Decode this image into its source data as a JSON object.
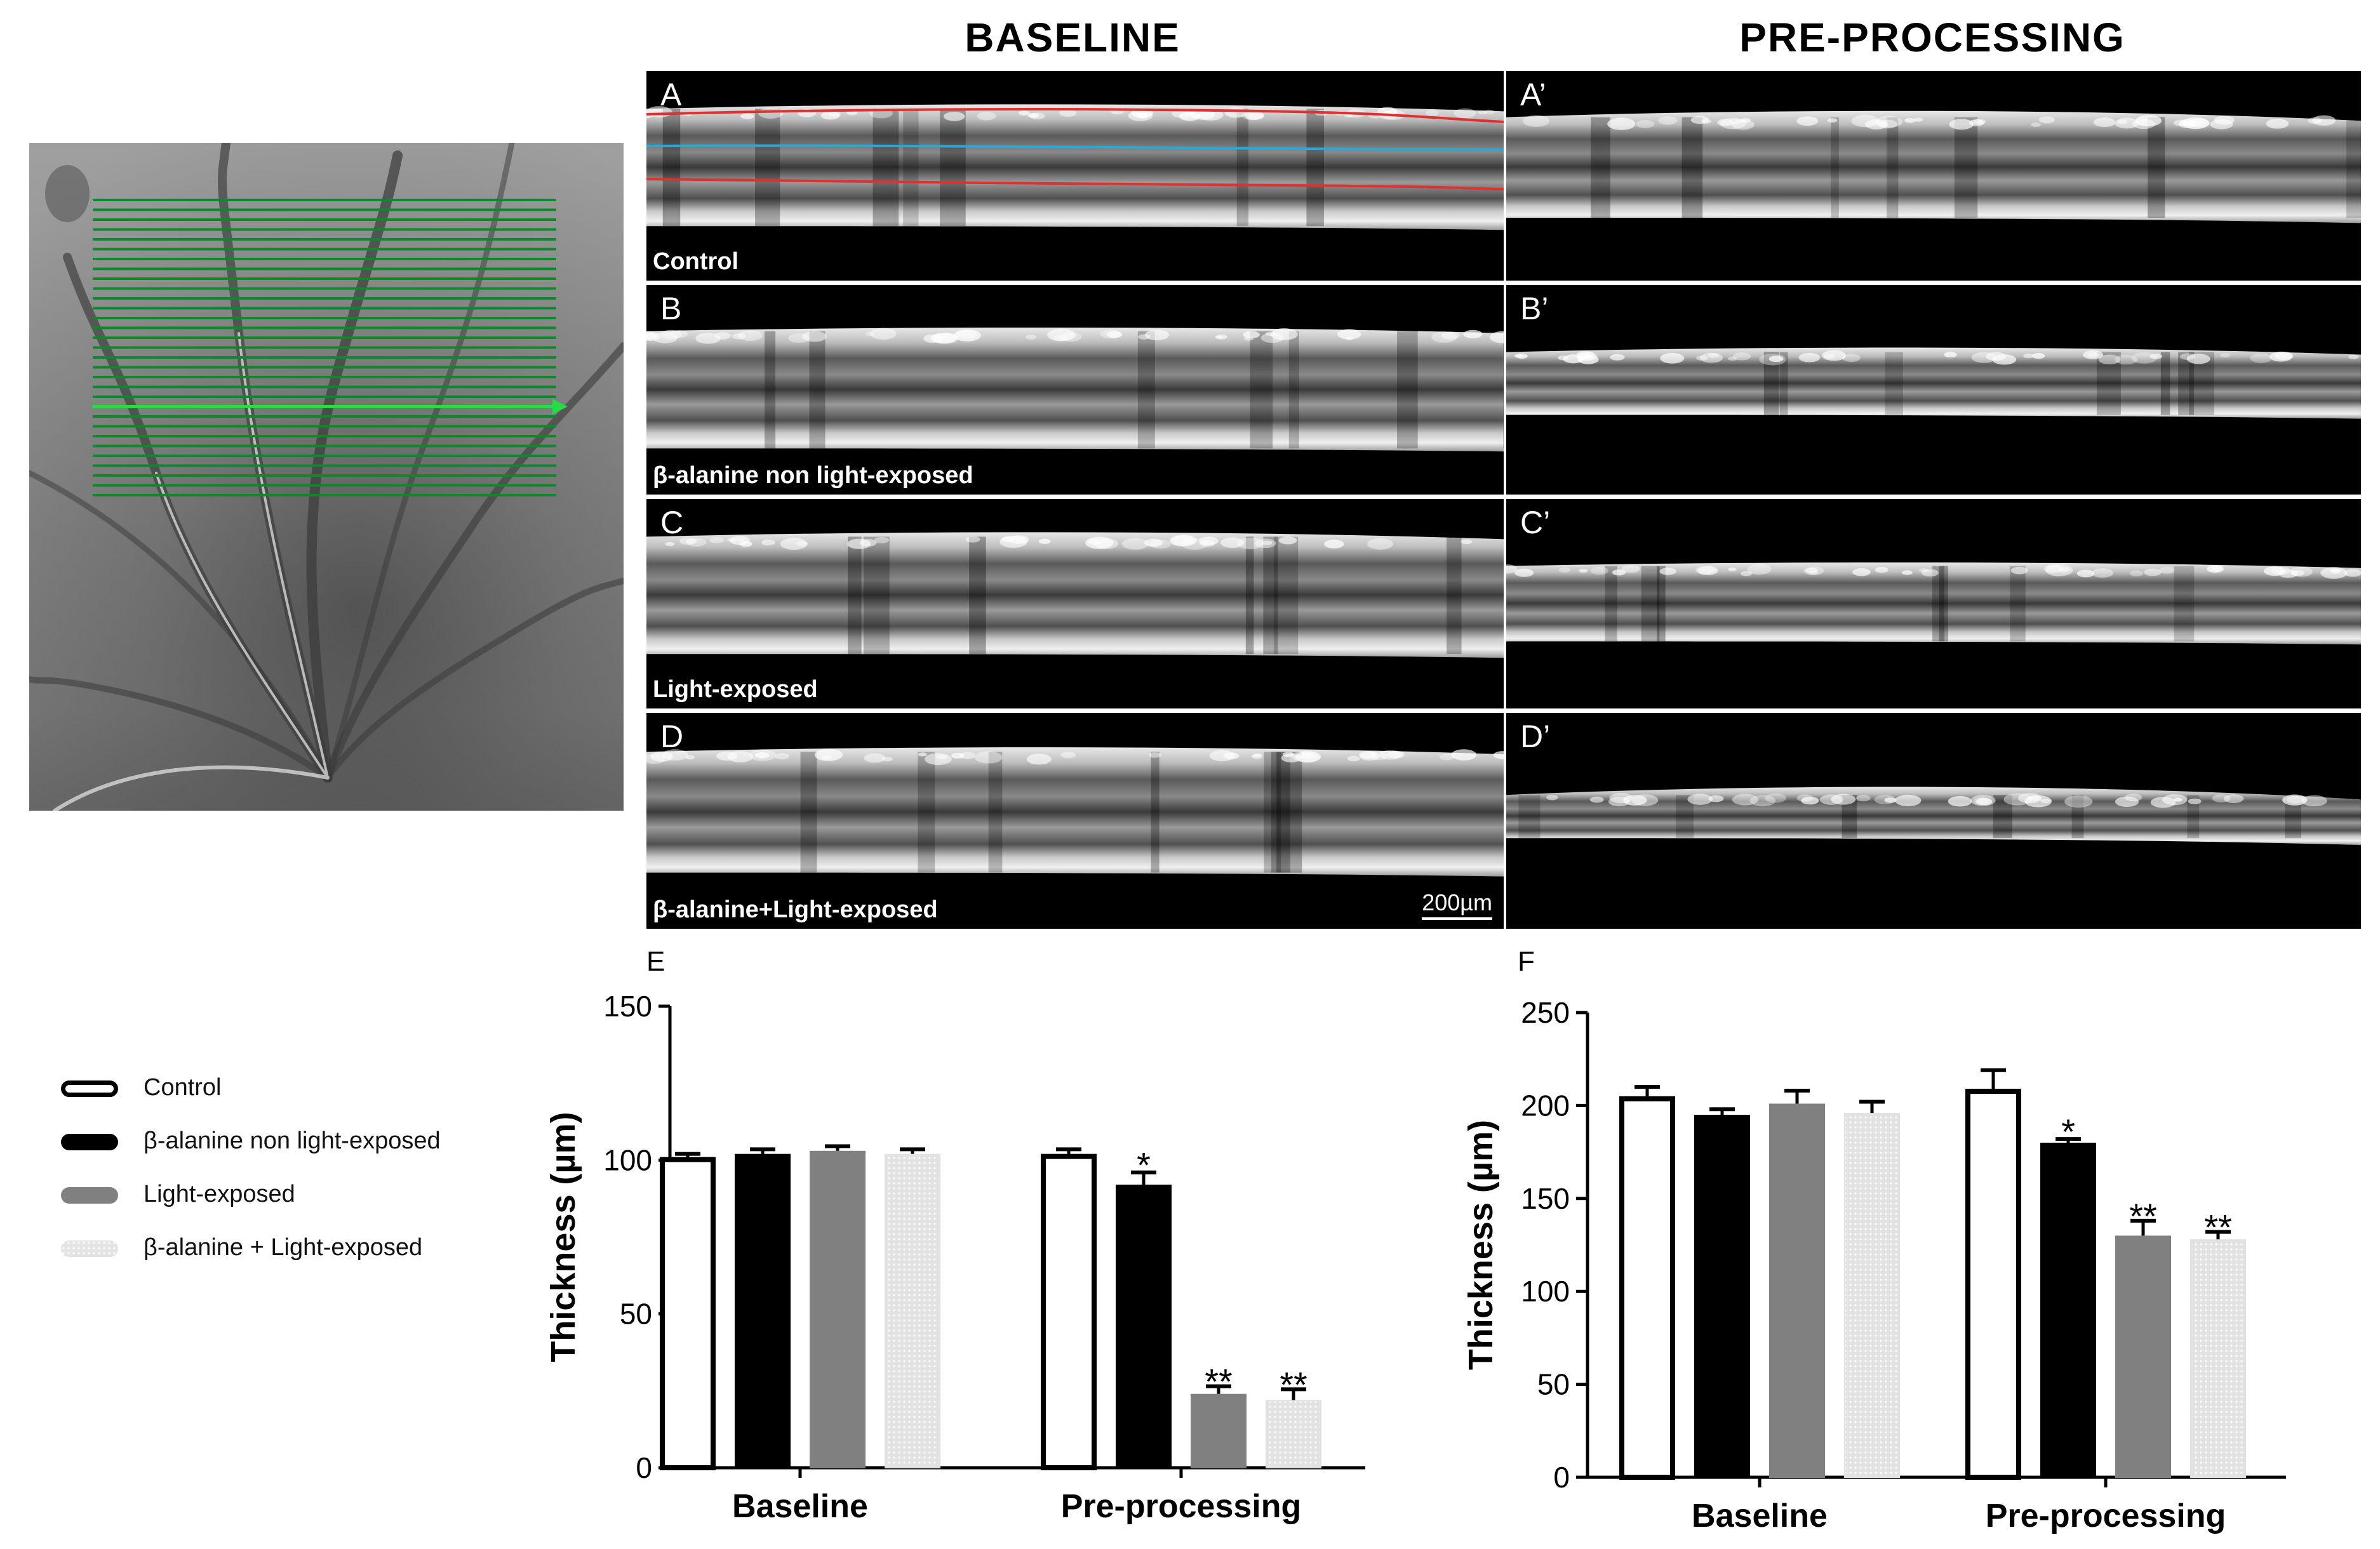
{
  "headers": {
    "baseline": "BASELINE",
    "preprocessing": "PRE-PROCESSING"
  },
  "panels": {
    "A": {
      "letter": "A",
      "caption": "Control"
    },
    "B": {
      "letter": "B",
      "caption": "β-alanine non light-exposed"
    },
    "C": {
      "letter": "C",
      "caption": "Light-exposed"
    },
    "D": {
      "letter": "D",
      "caption": "β-alanine+Light-exposed",
      "scalebar": "200µm"
    },
    "A2": {
      "letter": "A’"
    },
    "B2": {
      "letter": "B’"
    },
    "C2": {
      "letter": "C’"
    },
    "D2": {
      "letter": "D’"
    }
  },
  "legend": [
    {
      "label": "Control",
      "color": "#ffffff",
      "border": "#000000"
    },
    {
      "label": "β-alanine non light-exposed",
      "color": "#000000",
      "border": "#000000"
    },
    {
      "label": "Light-exposed",
      "color": "#808080",
      "border": "#808080"
    },
    {
      "label": "β-alanine + Light-exposed",
      "color": "#e6e6e6",
      "border": "#e6e6e6"
    }
  ],
  "colors": {
    "control": "#ffffff",
    "beta_non_light": "#000000",
    "light": "#808080",
    "beta_light": "#e2e2e2",
    "scan_lines": "#0a8a2a",
    "scan_active": "#22dd44"
  },
  "chart_data": [
    {
      "letter": "E",
      "type": "bar",
      "ylabel": "Thickness (µm)",
      "xlabel": "",
      "ylim": [
        0,
        150
      ],
      "yticks": [
        0,
        50,
        100,
        150
      ],
      "categories": [
        "Baseline",
        "Pre-processing"
      ],
      "series": [
        {
          "name": "Control",
          "values": [
            101,
            102
          ],
          "errors": [
            1,
            1.5
          ],
          "annotations": [
            "",
            ""
          ]
        },
        {
          "name": "β-alanine non light-exposed",
          "values": [
            102,
            92
          ],
          "errors": [
            1.5,
            4
          ],
          "annotations": [
            "",
            "*"
          ]
        },
        {
          "name": "Light-exposed",
          "values": [
            103,
            24
          ],
          "errors": [
            1.5,
            2.5
          ],
          "annotations": [
            "",
            "**"
          ]
        },
        {
          "name": "β-alanine + Light-exposed",
          "values": [
            102,
            22
          ],
          "errors": [
            1.5,
            3.5
          ],
          "annotations": [
            "",
            "**"
          ]
        }
      ]
    },
    {
      "letter": "F",
      "type": "bar",
      "ylabel": "Thickness (µm)",
      "xlabel": "",
      "ylim": [
        0,
        250
      ],
      "yticks": [
        0,
        50,
        100,
        150,
        200,
        250
      ],
      "categories": [
        "Baseline",
        "Pre-processing"
      ],
      "series": [
        {
          "name": "Control",
          "values": [
            205,
            209
          ],
          "errors": [
            5,
            10
          ],
          "annotations": [
            "",
            ""
          ]
        },
        {
          "name": "β-alanine non light-exposed",
          "values": [
            195,
            180
          ],
          "errors": [
            3,
            2
          ],
          "annotations": [
            "",
            "*"
          ]
        },
        {
          "name": "Light-exposed",
          "values": [
            201,
            130
          ],
          "errors": [
            7,
            8
          ],
          "annotations": [
            "",
            "**"
          ]
        },
        {
          "name": "β-alanine + Light-exposed",
          "values": [
            196,
            128
          ],
          "errors": [
            6,
            4
          ],
          "annotations": [
            "",
            "**"
          ]
        }
      ]
    }
  ]
}
